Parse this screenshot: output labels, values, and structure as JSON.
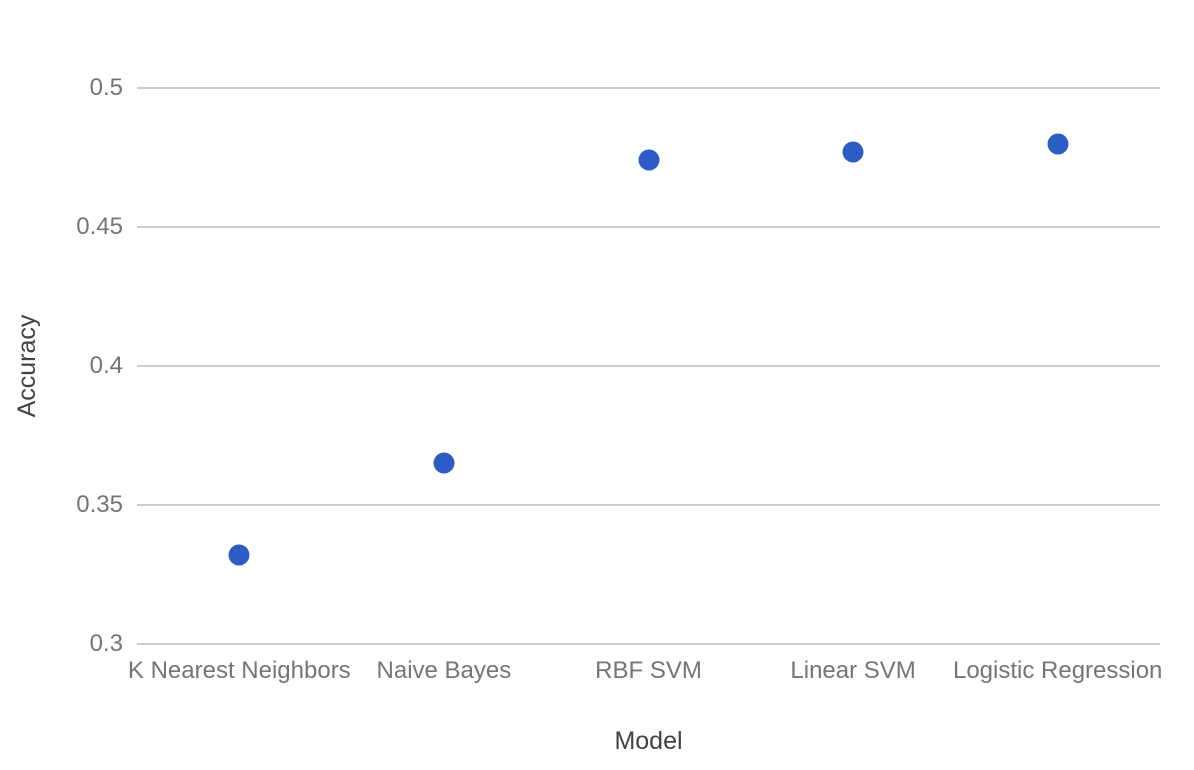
{
  "chart_data": {
    "type": "scatter",
    "title": "",
    "xlabel": "Model",
    "ylabel": "Accuracy",
    "categories": [
      "K Nearest Neighbors",
      "Naive Bayes",
      "RBF SVM",
      "Linear SVM",
      "Logistic Regression"
    ],
    "series": [
      {
        "name": "Accuracy",
        "values": [
          0.332,
          0.365,
          0.474,
          0.477,
          0.48
        ]
      }
    ],
    "ylim": [
      0.3,
      0.5
    ],
    "yticks": [
      0.3,
      0.35,
      0.4,
      0.45,
      0.5
    ],
    "grid": true,
    "legend_position": "none",
    "colors": {
      "point": "#2e5cc7",
      "gridline": "#cccccc",
      "tick_label": "#757575",
      "axis_title": "#424242",
      "background": "#ffffff"
    }
  }
}
